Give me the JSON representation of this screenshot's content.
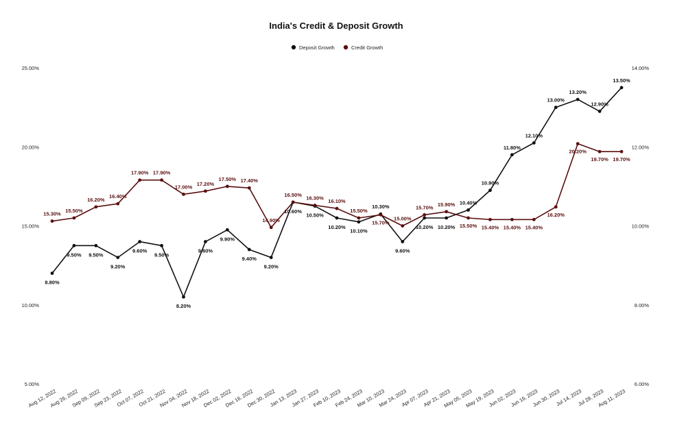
{
  "chart_data": {
    "type": "line",
    "title": "India's Credit & Deposit Growth",
    "colors": {
      "deposit": "#111111",
      "credit": "#5a0f0f"
    },
    "legend_position": "top-center",
    "categories": [
      "Aug 12, 2022",
      "Aug 26, 2022",
      "Sep 09, 2022",
      "Sep 23, 2022",
      "Oct 07, 2022",
      "Oct 21, 2022",
      "Nov 04, 2022",
      "Nov 18, 2022",
      "Dec 02, 2022",
      "Dec 16, 2022",
      "Dec 30, 2022",
      "Jan 13, 2023",
      "Jan 27, 2023",
      "Feb 10, 2023",
      "Feb 24, 2023",
      "Mar 10, 2023",
      "Mar 24, 2023",
      "Apr 07, 2023",
      "Apr 21, 2023",
      "May 05, 2023",
      "May 19, 2023",
      "Jun 02, 2023",
      "Jun 16, 2023",
      "Jun 30, 2023",
      "Jul 14, 2023",
      "Jul 28, 2023",
      "Aug 11, 2023"
    ],
    "series": [
      {
        "name": "Deposit Growth",
        "axis": "right",
        "values": [
          8.8,
          9.5,
          9.5,
          9.2,
          9.6,
          9.5,
          8.2,
          9.6,
          9.9,
          9.4,
          9.2,
          10.6,
          10.5,
          10.2,
          10.1,
          10.3,
          9.6,
          10.2,
          10.2,
          10.4,
          10.9,
          11.8,
          12.1,
          13.0,
          13.2,
          12.9,
          13.5
        ],
        "labels": [
          "8.80%",
          "9.50%",
          "9.50%",
          "9.20%",
          "9.60%",
          "9.50%",
          "8.20%",
          "9.60%",
          "9.90%",
          "9.40%",
          "9.20%",
          "10.60%",
          "10.50%",
          "10.20%",
          "10.10%",
          "10.30%",
          "9.60%",
          "10.20%",
          "10.20%",
          "10.40%",
          "10.90%",
          "11.80%",
          "12.10%",
          "13.00%",
          "13.20%",
          "12.90%",
          "13.50%"
        ]
      },
      {
        "name": "Credit Growth",
        "axis": "left",
        "values": [
          15.3,
          15.5,
          16.2,
          16.4,
          17.9,
          17.9,
          17.0,
          17.2,
          17.5,
          17.4,
          14.9,
          16.5,
          16.3,
          16.1,
          15.5,
          15.7,
          15.0,
          15.7,
          15.9,
          15.5,
          15.4,
          15.4,
          15.4,
          16.2,
          20.2,
          19.7,
          19.7
        ],
        "labels": [
          "15.30%",
          "15.50%",
          "16.20%",
          "16.40%",
          "17.90%",
          "17.90%",
          "17.00%",
          "17.20%",
          "17.50%",
          "17.40%",
          "14.90%",
          "16.50%",
          "16.30%",
          "16.10%",
          "15.50%",
          "15.70%",
          "15.00%",
          "15.70%",
          "15.90%",
          "15.50%",
          "15.40%",
          "15.40%",
          "15.40%",
          "16.20%",
          "20.20%",
          "19.70%",
          "19.70%"
        ]
      }
    ],
    "y_left": {
      "min": 5,
      "max": 25,
      "ticks": [
        5,
        10,
        15,
        20,
        25
      ],
      "tick_labels": [
        "5.00%",
        "10.00%",
        "15.00%",
        "20.00%",
        "25.00%"
      ]
    },
    "y_right": {
      "min": 6,
      "max": 14,
      "ticks": [
        6,
        8,
        10,
        12,
        14
      ],
      "tick_labels": [
        "6.00%",
        "8.00%",
        "10.00%",
        "12.00%",
        "14.00%"
      ]
    },
    "grid": false
  }
}
